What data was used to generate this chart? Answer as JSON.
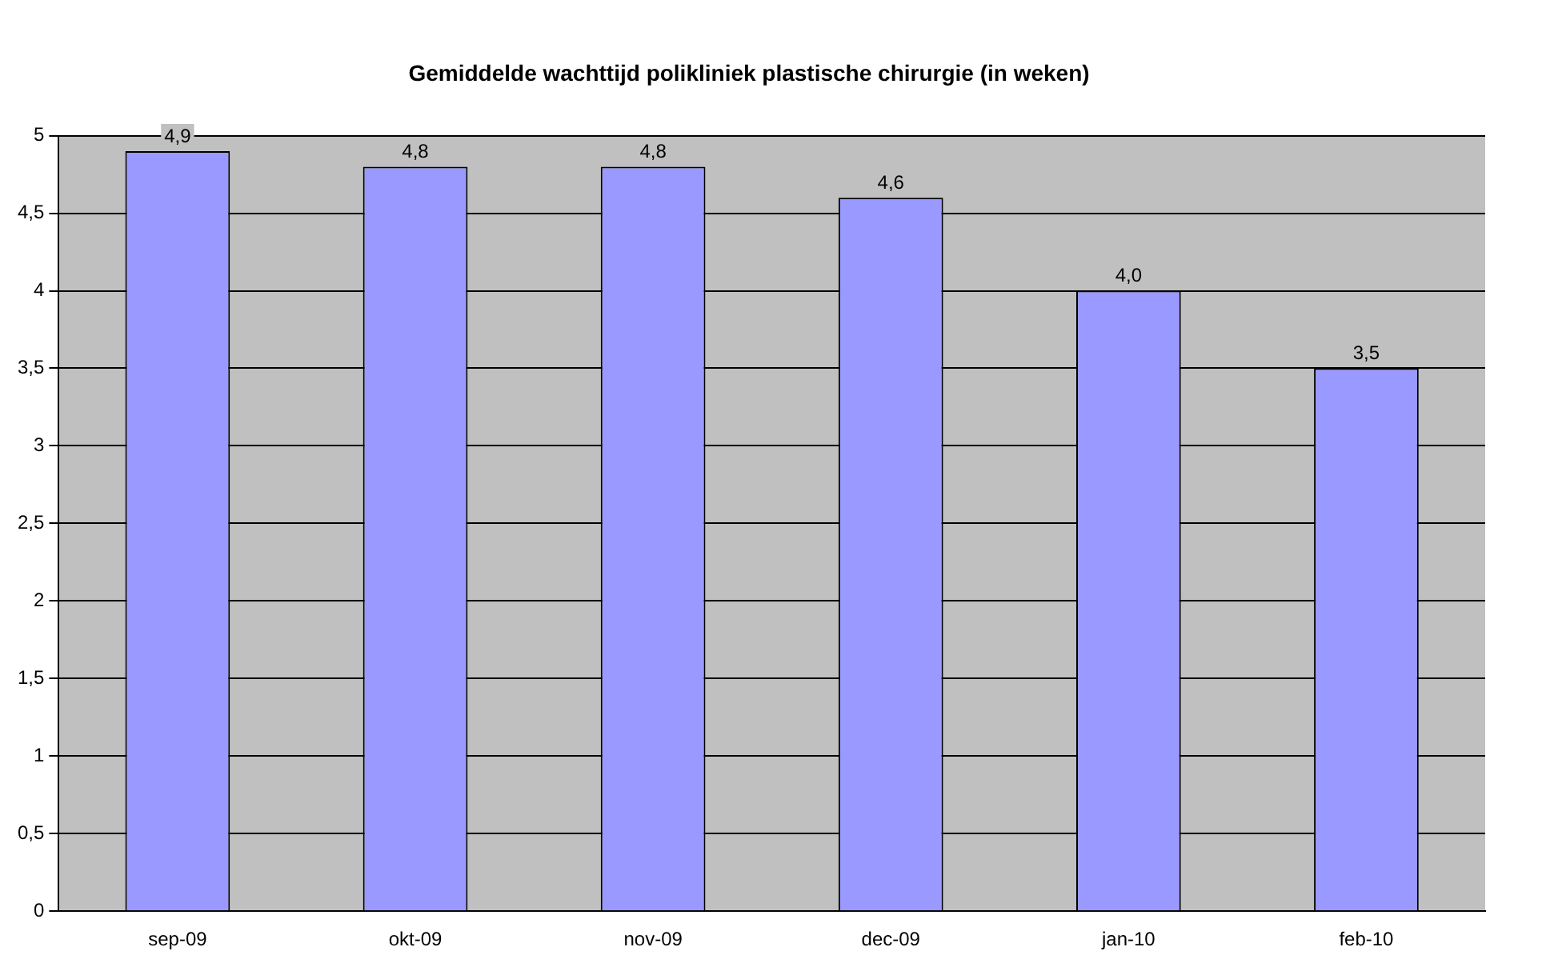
{
  "chart_data": {
    "type": "bar",
    "title": "Gemiddelde wachttijd polikliniek plastische chirurgie (in weken)",
    "categories": [
      "sep-09",
      "okt-09",
      "nov-09",
      "dec-09",
      "jan-10",
      "feb-10"
    ],
    "values": [
      4.9,
      4.8,
      4.8,
      4.6,
      4.0,
      3.5
    ],
    "value_labels": [
      "4,9",
      "4,8",
      "4,8",
      "4,6",
      "4,0",
      "3,5"
    ],
    "color": "#9999ff",
    "ylim": [
      0,
      5
    ],
    "yticks": [
      0,
      {
        "value": 0.5,
        "label": "0,5"
      },
      1,
      {
        "value": 1.5,
        "label": "1,5"
      },
      2,
      {
        "value": 2.5,
        "label": "2,5"
      },
      3,
      {
        "value": 3.5,
        "label": "3,5"
      },
      4,
      {
        "value": 4.5,
        "label": "4,5"
      },
      5
    ],
    "grid": "y",
    "legend": false
  }
}
